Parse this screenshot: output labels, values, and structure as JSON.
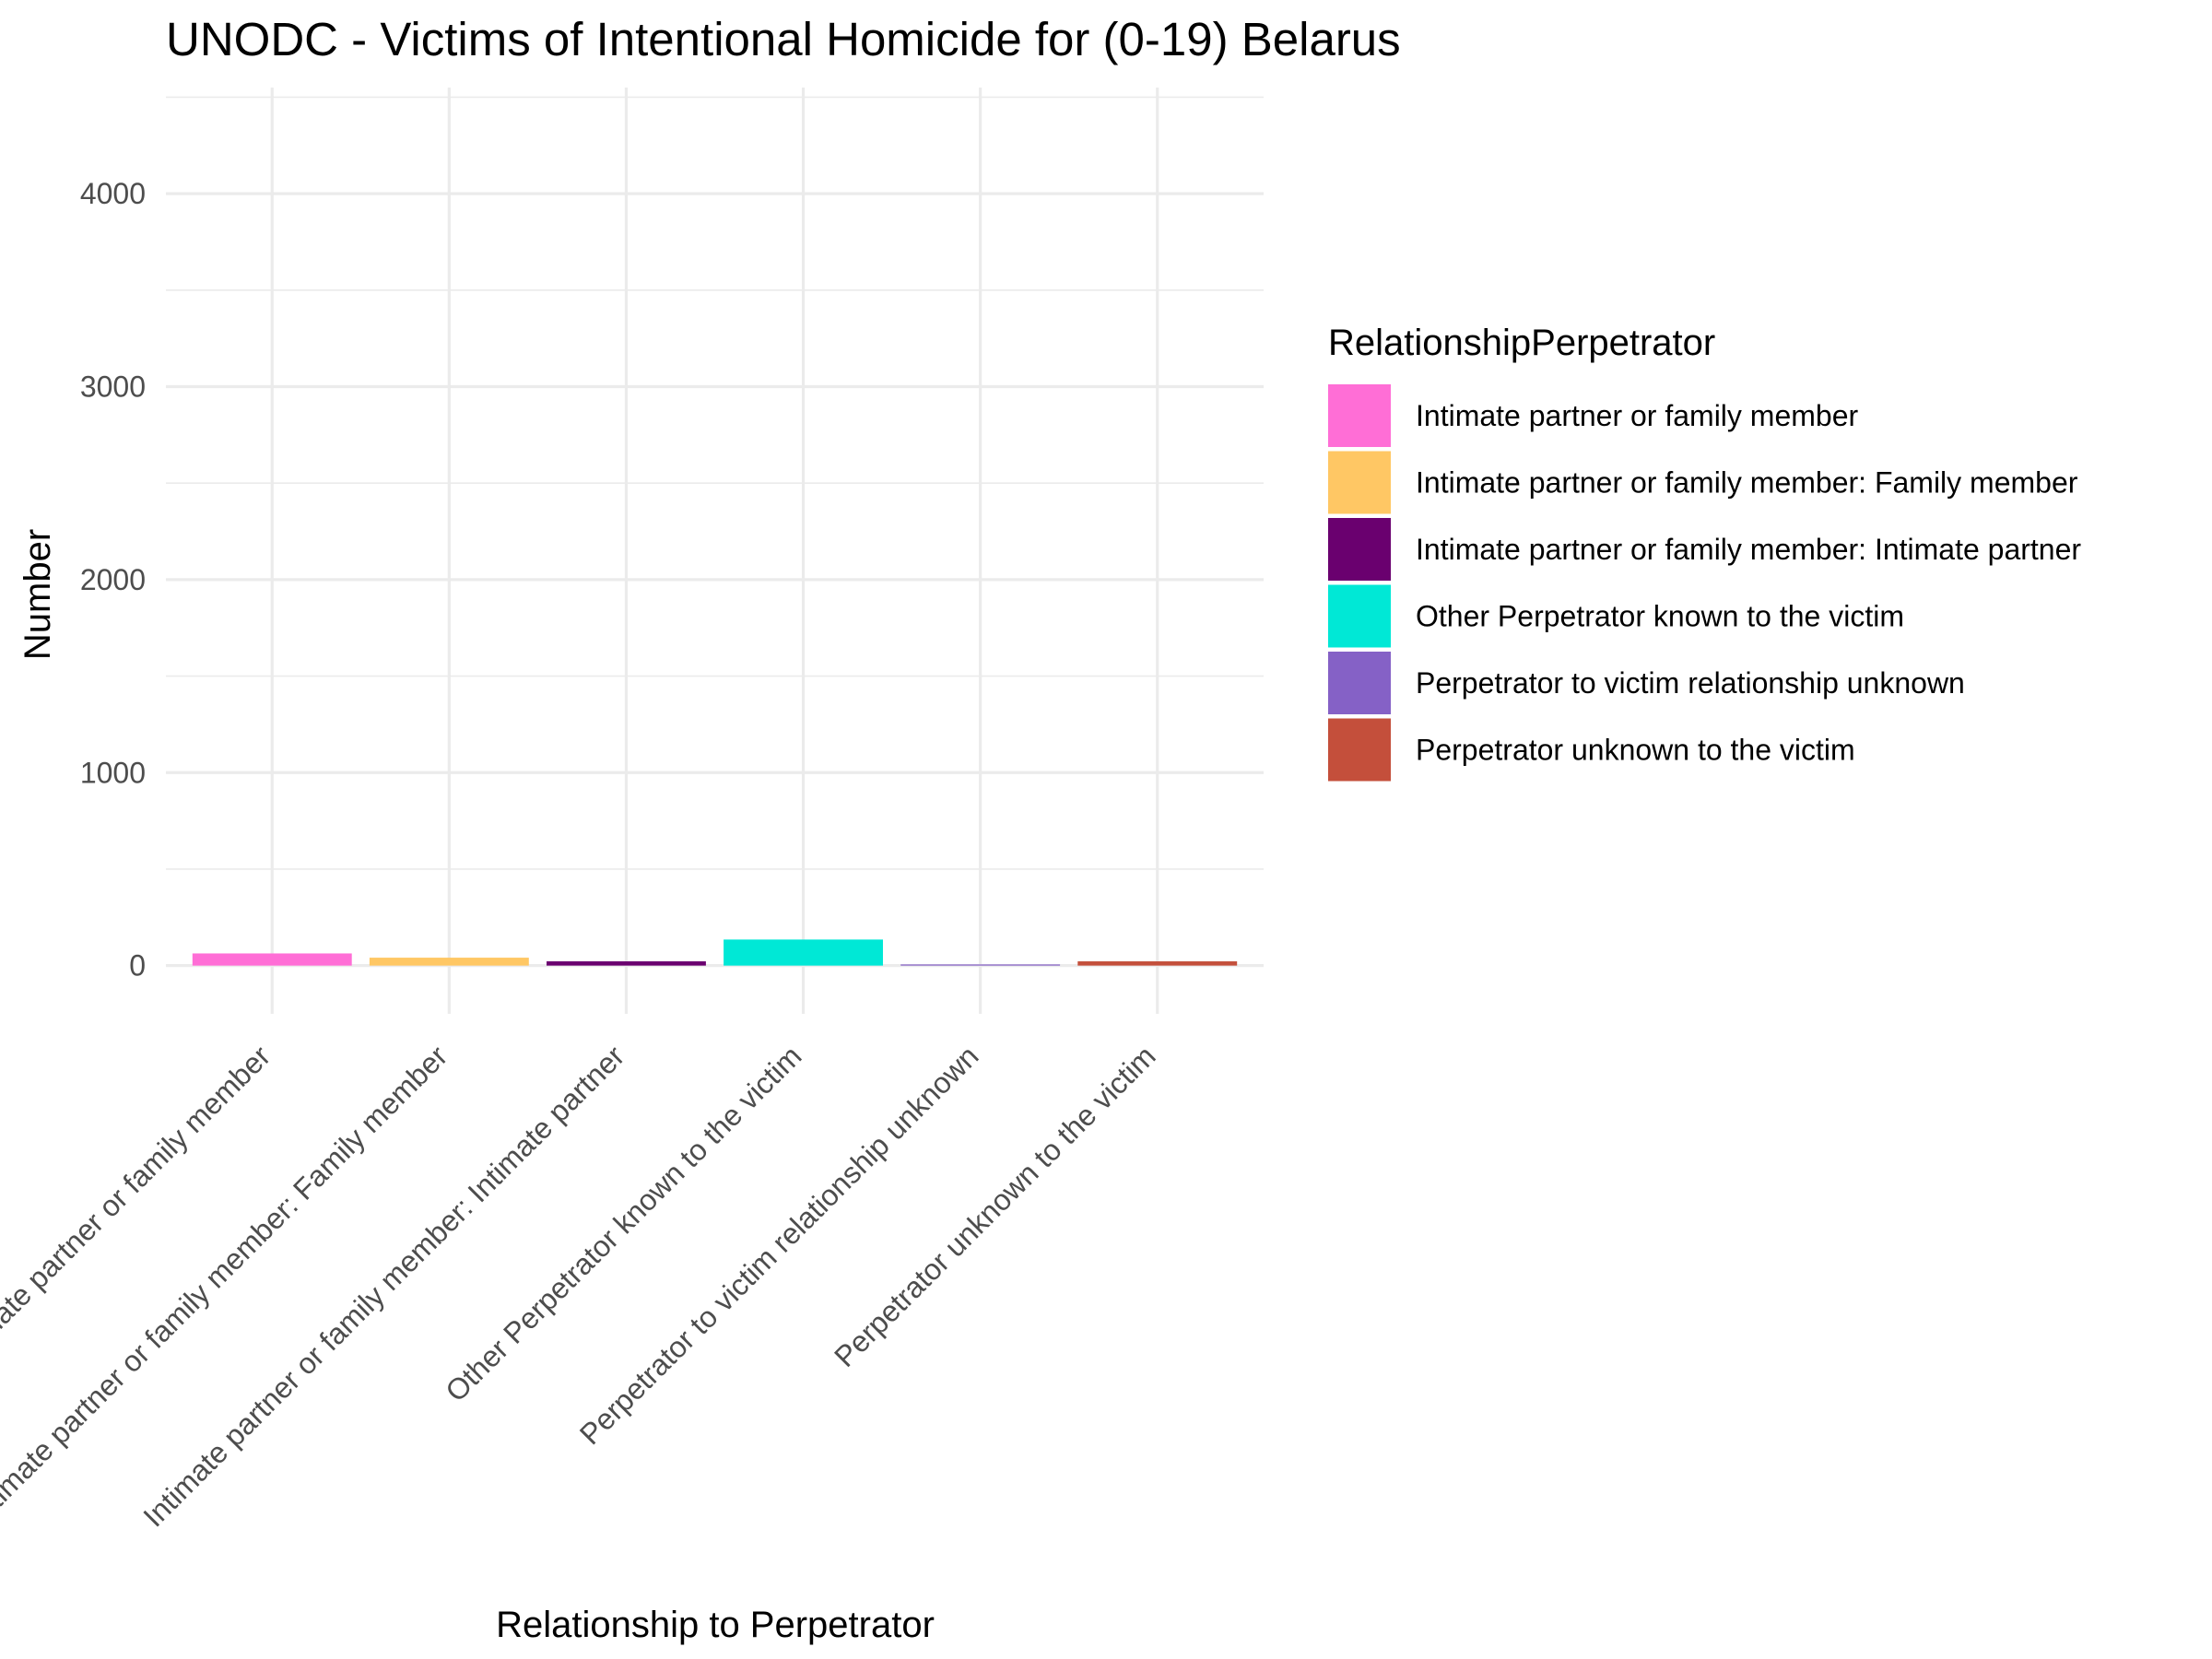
{
  "chart_data": {
    "type": "bar",
    "title": "UNODC - Victims of Intentional Homicide for (0-19) Belarus",
    "xlabel": "Relationship to Perpetrator",
    "ylabel": "Number",
    "ylim": [
      -250,
      4550
    ],
    "yticks": [
      0,
      1000,
      2000,
      3000,
      4000
    ],
    "ytick_labels": [
      "0",
      "1000",
      "2000",
      "3000",
      "4000"
    ],
    "grid": true,
    "legend_position": "right",
    "legend_title": "RelationshipPerpetrator",
    "categories": [
      "Intimate partner or family member",
      "Intimate partner or family member: Family member",
      "Intimate partner or family member: Intimate partner",
      "Other Perpetrator known to the victim",
      "Perpetrator to victim relationship unknown",
      "Perpetrator unknown to the victim"
    ],
    "values": [
      63,
      41,
      22,
      135,
      6,
      22
    ],
    "colors": [
      "#ff6ed6",
      "#ffc764",
      "#6a006f",
      "#00e8d6",
      "#8561c6",
      "#c44f3b"
    ]
  }
}
